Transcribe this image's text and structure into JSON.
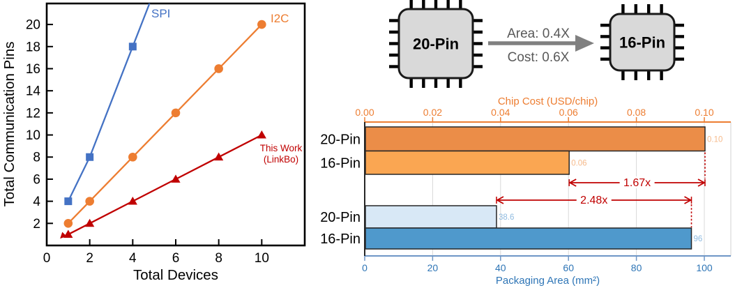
{
  "chart_data": [
    {
      "type": "line",
      "title": "",
      "xlabel": "Total Devices",
      "ylabel": "Total Communication Pins",
      "xlim": [
        0,
        12
      ],
      "ylim": [
        0,
        21.9
      ],
      "xticks": [
        0,
        2,
        4,
        6,
        8,
        10
      ],
      "yticks": [
        2,
        4,
        6,
        8,
        10,
        12,
        14,
        16,
        18,
        20
      ],
      "grid": false,
      "series": [
        {
          "id": "spi",
          "name": "SPI",
          "color": "#4472C4",
          "marker": "square",
          "x": [
            1,
            2,
            4
          ],
          "y": [
            4,
            8,
            18
          ],
          "extend_to": [
            4.78,
            21.9
          ]
        },
        {
          "id": "i2c",
          "name": "I2C",
          "color": "#ED7D31",
          "marker": "circle",
          "x": [
            1,
            2,
            4,
            6,
            8,
            10
          ],
          "y": [
            2,
            4,
            8,
            12,
            16,
            20
          ]
        },
        {
          "id": "thiswork",
          "name": "This Work (LinkBo)",
          "label_lines": [
            "This Work",
            "(LinkBo)"
          ],
          "color": "#C00000",
          "marker": "triangle",
          "start_arrow": true,
          "x": [
            1,
            2,
            4,
            6,
            8,
            10
          ],
          "y": [
            1,
            2,
            4,
            6,
            8,
            10
          ]
        }
      ]
    },
    {
      "type": "bar",
      "orientation": "horizontal",
      "top_axis": {
        "title": "Chip Cost (USD/chip)",
        "color": "#ED7D31",
        "tick_labels": [
          "0.00",
          "0.02",
          "0.04",
          "0.06",
          "0.08",
          "0.10"
        ],
        "tick_step": 0.02,
        "range": [
          0,
          0.1078
        ]
      },
      "bottom_axis": {
        "title": "Packaging Area (mm²)",
        "color": "#2E75B6",
        "line_color": "#6E96C6",
        "tick_labels": [
          "0",
          "20",
          "40",
          "60",
          "80",
          "100"
        ],
        "tick_step": 20,
        "range": [
          0,
          107.8
        ]
      },
      "bars": [
        {
          "category": "20-Pin",
          "axis": "top",
          "value": 0.1,
          "label": "0.10",
          "fill": "#EB8D48",
          "label_color": "#F6BA8B"
        },
        {
          "category": "16-Pin",
          "axis": "top",
          "value": 0.06,
          "label": "0.06",
          "fill": "#FAA652",
          "label_color": "#F6BA8B"
        },
        {
          "category": "20-Pin",
          "axis": "bottom",
          "value": 38.6,
          "label": "38.6",
          "fill": "#D8E8F6",
          "label_color": "#8FBBE0"
        },
        {
          "category": "16-Pin",
          "axis": "bottom",
          "value": 96,
          "label": "96",
          "fill": "#4F99CC",
          "label_color": "#8FBBE0"
        }
      ],
      "bar_outline": "#262626",
      "annotations": [
        {
          "text": "1.67x",
          "axis": "top",
          "from": 0.06,
          "to": 0.1
        },
        {
          "text": "2.48x",
          "axis": "bottom",
          "from": 38.6,
          "to": 96
        }
      ],
      "annotation_color": "#C00000",
      "gridline_color": "#D9D9D9"
    }
  ],
  "diagram": {
    "chips": [
      {
        "label": "20-Pin",
        "pins_per_side": 5
      },
      {
        "label": "16-Pin",
        "pins_per_side": 4
      }
    ],
    "arrow_label_top": "Area: 0.4X",
    "arrow_label_bottom": "Cost: 0.6X",
    "chip_fill": "#D9D9D9",
    "chip_border": "#1A1A1A",
    "pin_color": "#000000",
    "arrow_color": "#808080",
    "label_color": "#595959"
  }
}
